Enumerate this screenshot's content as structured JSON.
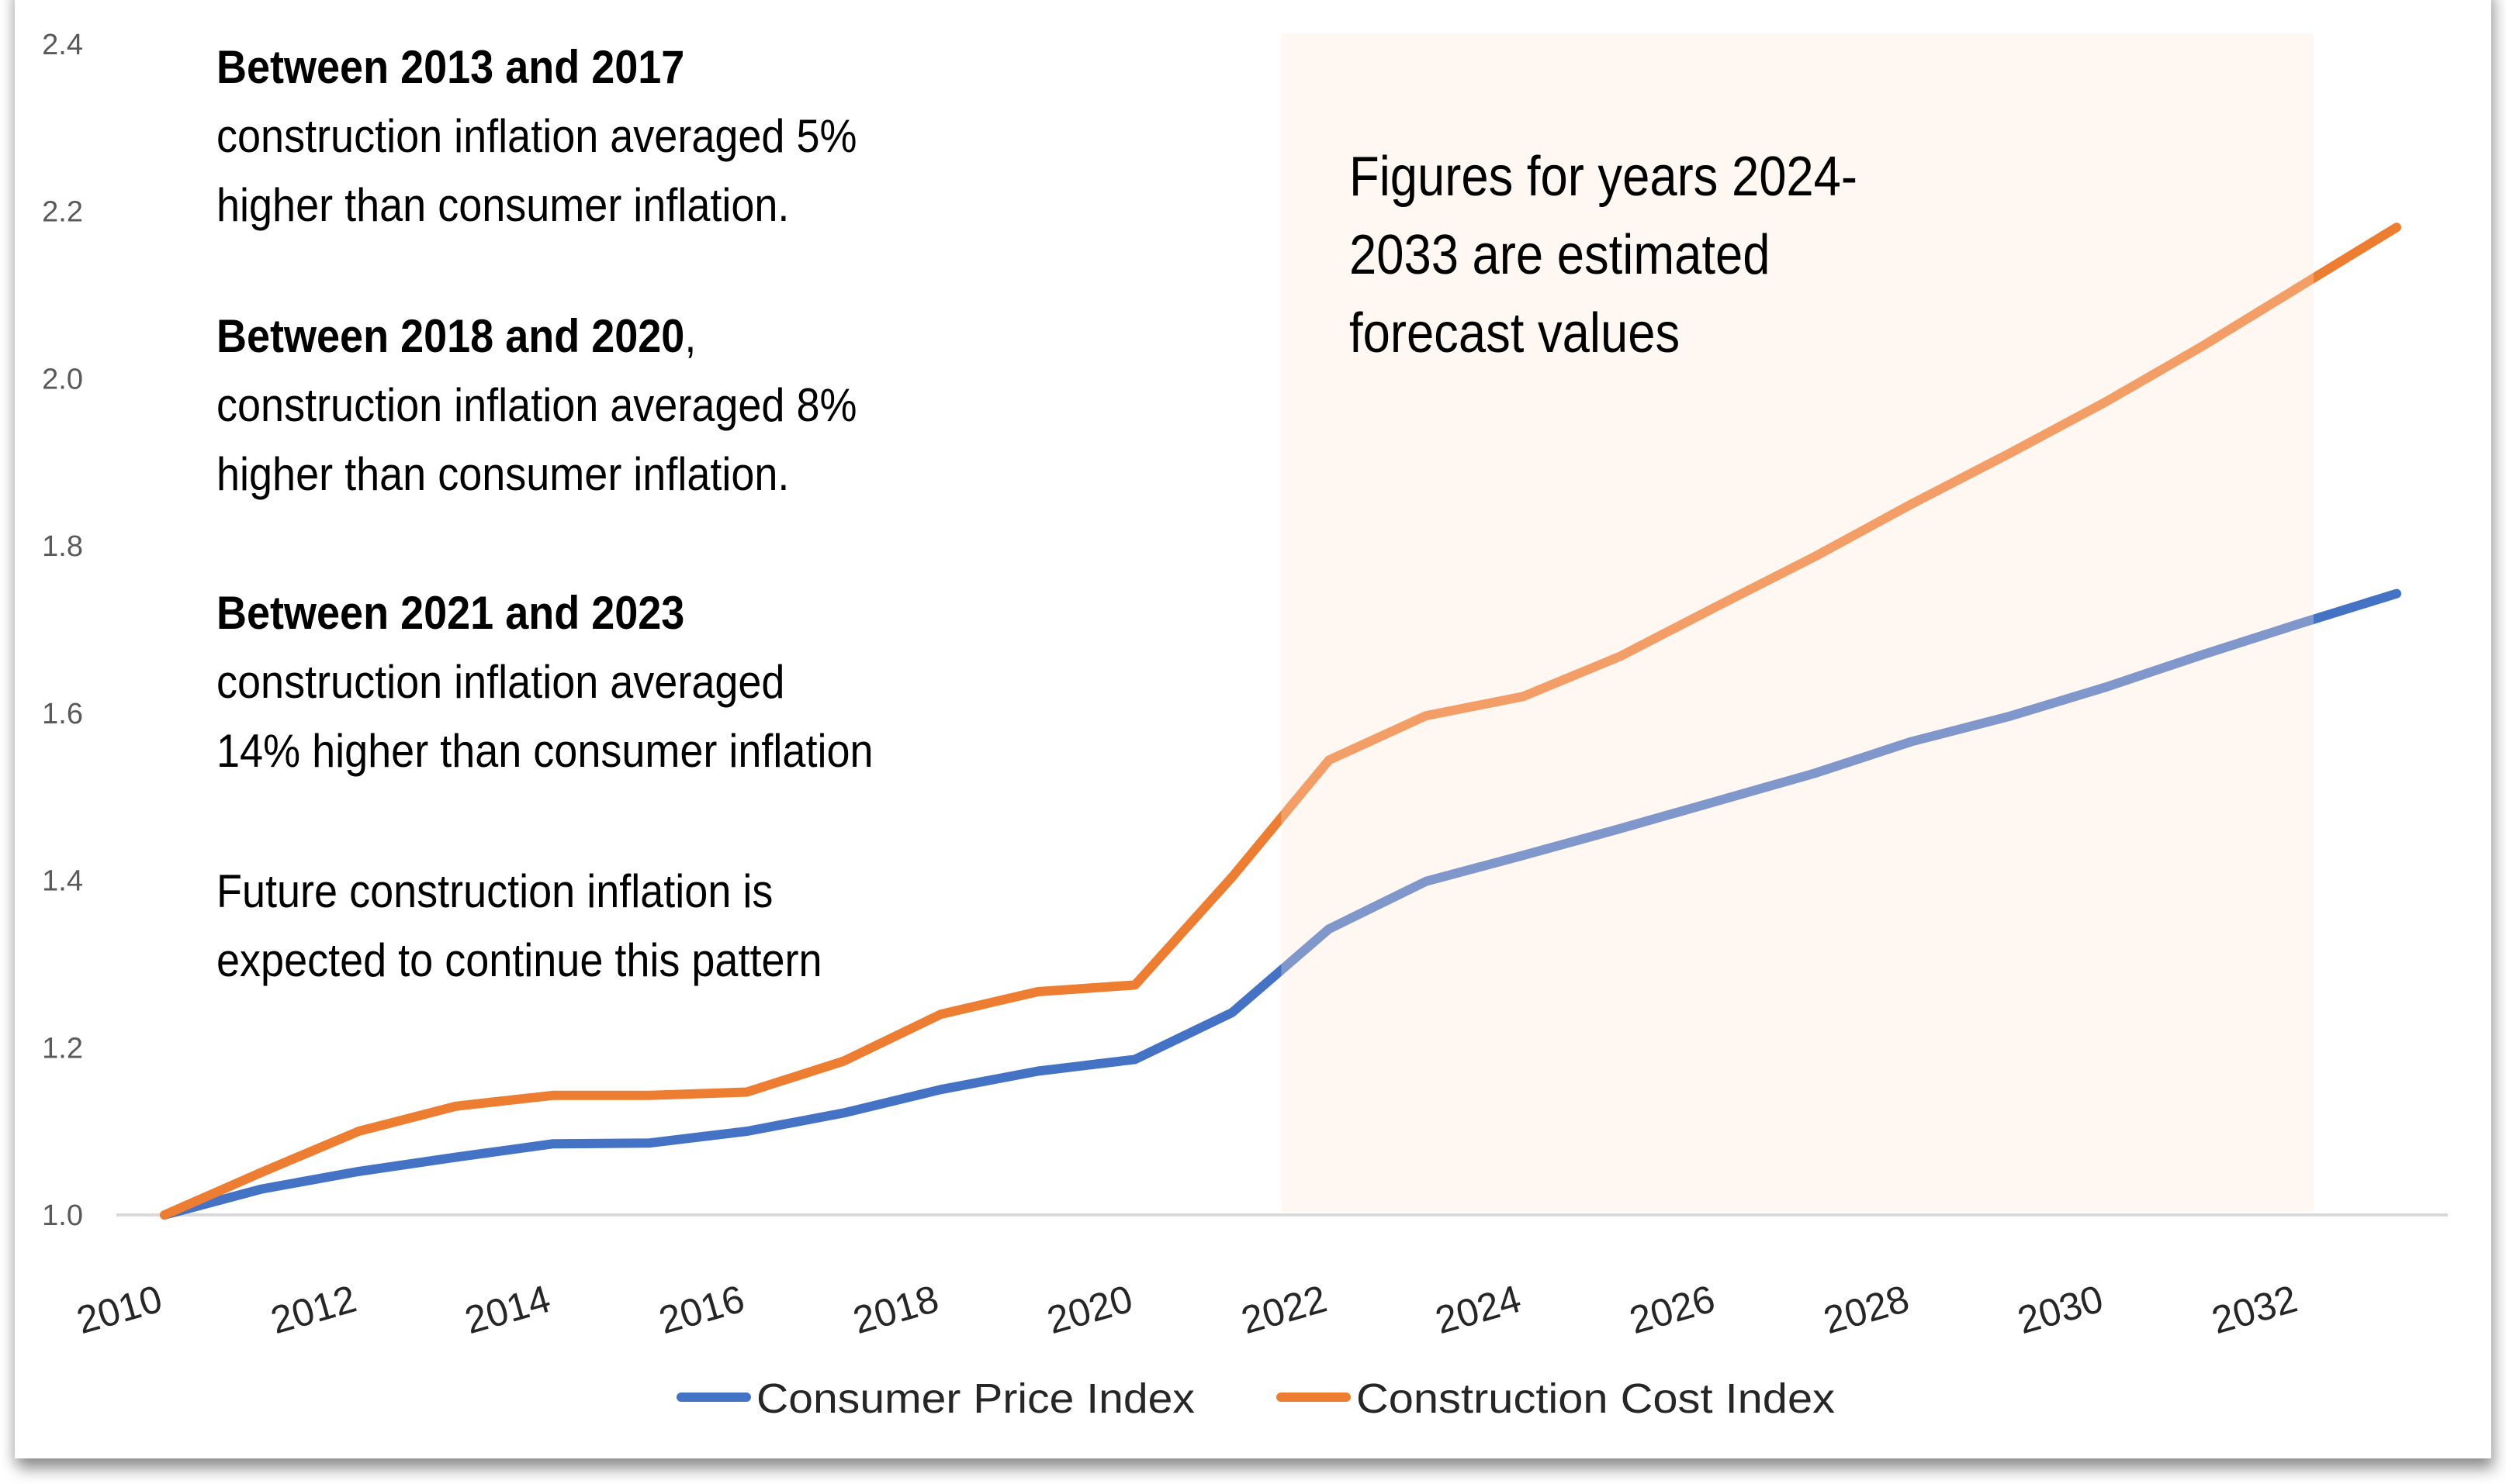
{
  "chart_data": {
    "type": "line",
    "title": "",
    "xlabel": "",
    "ylabel": "",
    "x": [
      2010,
      2011,
      2012,
      2013,
      2014,
      2015,
      2016,
      2017,
      2018,
      2019,
      2020,
      2021,
      2022,
      2023,
      2024,
      2025,
      2026,
      2027,
      2028,
      2029,
      2030,
      2031,
      2032,
      2033
    ],
    "x_tick_labels": [
      "2010",
      "2012",
      "2014",
      "2016",
      "2018",
      "2020",
      "2022",
      "2024",
      "2026",
      "2028",
      "2030",
      "2032"
    ],
    "x_tick_values": [
      2010,
      2012,
      2014,
      2016,
      2018,
      2020,
      2022,
      2024,
      2026,
      2028,
      2030,
      2032
    ],
    "xlim": [
      2010,
      2033
    ],
    "ylim": [
      1.0,
      2.4
    ],
    "y_ticks": [
      1.0,
      1.2,
      1.4,
      1.6,
      1.8,
      2.0,
      2.2,
      2.4
    ],
    "y_tick_labels": [
      "1.0",
      "1.2",
      "1.4",
      "1.6",
      "1.8",
      "2.0",
      "2.2",
      "2.4"
    ],
    "gridlines": "baseline only (y = 1.0)",
    "legend_position": "bottom-center",
    "series": [
      {
        "name": "Consumer Price Index",
        "color": "#4472c4",
        "values": [
          1.0,
          1.031,
          1.052,
          1.069,
          1.085,
          1.086,
          1.1,
          1.122,
          1.15,
          1.172,
          1.186,
          1.242,
          1.342,
          1.399,
          1.43,
          1.462,
          1.495,
          1.528,
          1.566,
          1.596,
          1.631,
          1.67,
          1.707,
          1.743
        ]
      },
      {
        "name": "Construction Cost Index",
        "color": "#ed7d31",
        "values": [
          1.0,
          1.051,
          1.1,
          1.13,
          1.143,
          1.143,
          1.147,
          1.184,
          1.24,
          1.267,
          1.275,
          1.404,
          1.544,
          1.597,
          1.62,
          1.668,
          1.728,
          1.787,
          1.85,
          1.91,
          1.972,
          2.039,
          2.11,
          2.181
        ]
      }
    ],
    "forecast_band": {
      "label": "Figures for years 2024-2033 are estimated forecast values",
      "x_range": [
        2021.5,
        2026.7
      ],
      "color": "#fbe5d6"
    },
    "annotations": [
      {
        "bold": "Between 2013 and 2017",
        "rest_lines": [
          "construction inflation averaged 5%",
          "higher than consumer inflation."
        ]
      },
      {
        "bold": "Between 2018 and 2020",
        "bold_suffix": ",",
        "rest_lines": [
          "construction inflation averaged 8%",
          "higher than consumer inflation."
        ]
      },
      {
        "bold": "Between 2021 and 2023",
        "rest_lines": [
          "construction inflation averaged",
          "14% higher than consumer inflation"
        ]
      },
      {
        "bold": "",
        "rest_lines": [
          "Future construction inflation is",
          "expected to continue this pattern"
        ]
      }
    ],
    "forecast_note_lines": [
      "Figures for years 2024-",
      "2033 are estimated",
      "forecast values"
    ]
  }
}
